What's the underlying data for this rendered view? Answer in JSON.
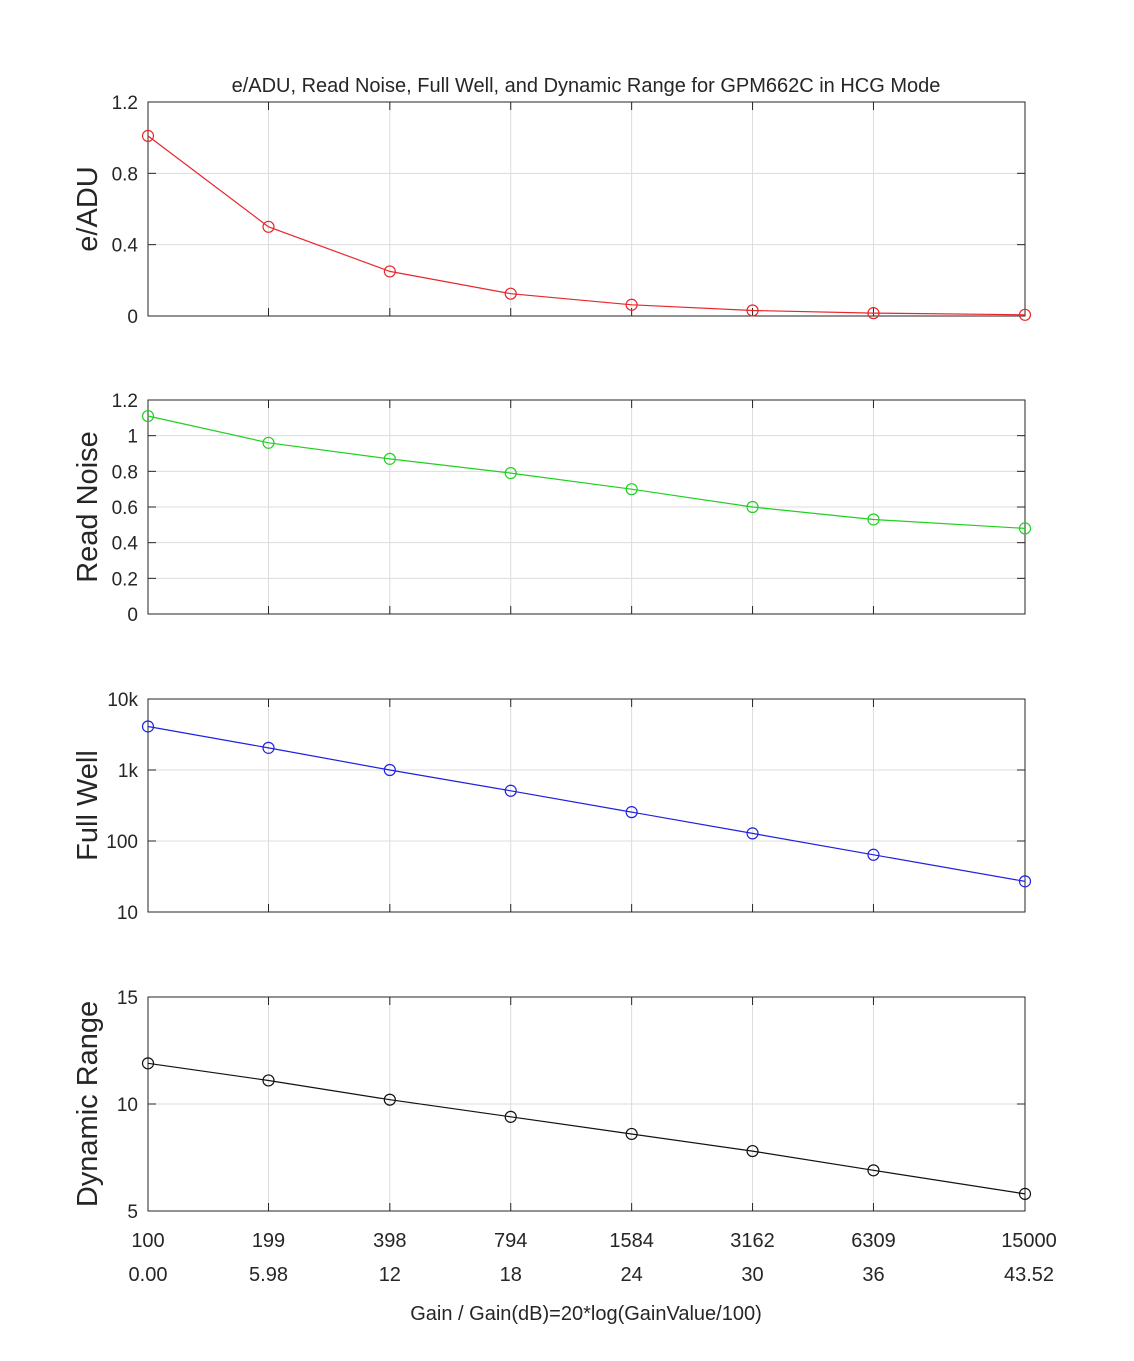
{
  "chart_data": {
    "type": "line",
    "title": "e/ADU, Read Noise, Full Well, and Dynamic Range for GPM662C in HCG Mode",
    "xlabel": "Gain / Gain(dB)=20*log(GainValue/100)",
    "x": [
      0.0,
      5.98,
      12,
      18,
      24,
      30,
      36,
      43.52
    ],
    "x_tick_labels_gain": [
      "100",
      "199",
      "398",
      "794",
      "1584",
      "3162",
      "6309",
      "15000"
    ],
    "x_tick_labels_db": [
      "0.00",
      "5.98",
      "12",
      "18",
      "24",
      "30",
      "36",
      "43.52"
    ],
    "grid": true,
    "panels": [
      {
        "ylabel": "e/ADU",
        "color": "#e8262b",
        "scale": "linear",
        "ylim": [
          0,
          1.2
        ],
        "yticks": [
          0,
          0.4,
          0.8,
          1.2
        ],
        "ytick_labels": [
          "0",
          "0.4",
          "0.8",
          "1.2"
        ],
        "values": [
          1.01,
          0.5,
          0.25,
          0.125,
          0.063,
          0.031,
          0.016,
          0.0067
        ]
      },
      {
        "ylabel": "Read Noise",
        "color": "#20d020",
        "scale": "linear",
        "ylim": [
          0,
          1.2
        ],
        "yticks": [
          0,
          0.2,
          0.4,
          0.6,
          0.8,
          1,
          1.2
        ],
        "ytick_labels": [
          "0",
          "0.2",
          "0.4",
          "0.6",
          "0.8",
          "1",
          "1.2"
        ],
        "values": [
          1.11,
          0.96,
          0.87,
          0.79,
          0.7,
          0.6,
          0.53,
          0.48
        ]
      },
      {
        "ylabel": "Full Well",
        "color": "#2020e0",
        "scale": "log",
        "ylim": [
          10,
          10000
        ],
        "yticks": [
          10,
          100,
          1000,
          10000
        ],
        "ytick_labels": [
          "10",
          "100",
          "1k",
          "10k"
        ],
        "values": [
          4100,
          2050,
          1000,
          510,
          255,
          128,
          64,
          27
        ]
      },
      {
        "ylabel": "Dynamic Range",
        "color": "#111111",
        "scale": "linear",
        "ylim": [
          5,
          15
        ],
        "yticks": [
          5,
          10,
          15
        ],
        "ytick_labels": [
          "5",
          "10",
          "15"
        ],
        "values": [
          11.9,
          11.1,
          10.2,
          9.4,
          8.6,
          7.8,
          6.9,
          5.8
        ]
      }
    ]
  }
}
